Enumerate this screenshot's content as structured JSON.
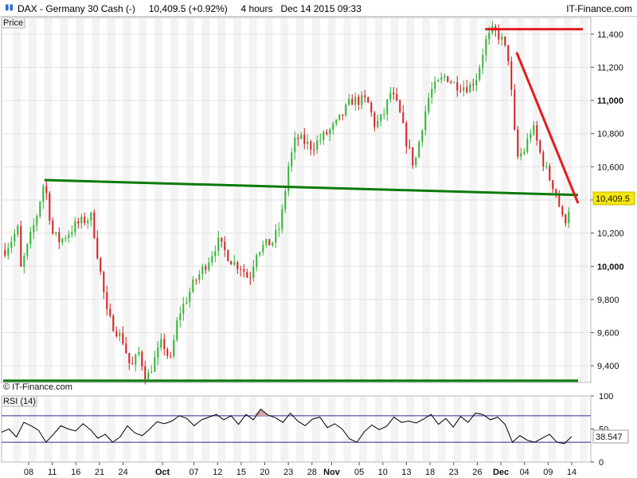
{
  "header": {
    "title": "DAX - Germany 30 Cash (-)     10,409.5 (+0.92%)     4 hours   Dec 14 2015 09:33",
    "brand": "IT-Finance.com"
  },
  "colors": {
    "up": "#33b233",
    "down": "#d22020",
    "support": "#0b7a0b",
    "resistance": "#e41b1b",
    "last_price_bg": "#f5e60e",
    "rsi_line": "#000000",
    "rsi_band": "#2b2b8c",
    "rsi_overbought_fill": "#d7a8a8"
  },
  "chart_data": [
    {
      "type": "candlestick",
      "panel_label": "Price",
      "watermark": "© IT-Finance.com",
      "ylim": [
        9300,
        11500
      ],
      "yticks": [
        9400,
        9600,
        9800,
        10000,
        10200,
        10400,
        10600,
        10800,
        11000,
        11200,
        11400
      ],
      "ytick_labels": [
        "9,400",
        "9,600",
        "9,800",
        "10,000",
        "10,200",
        "10,400",
        "10,600",
        "10,800",
        "11,000",
        "11,200",
        "11,400"
      ],
      "last_price": "10,409.5",
      "last_value": 10409.5,
      "x_dates": [
        "Sep 08",
        "Sep 11",
        "Sep 16",
        "Sep 21",
        "Sep 24",
        "Oct",
        "Oct 07",
        "Oct 12",
        "Oct 15",
        "Oct 20",
        "Oct 23",
        "Oct 28",
        "Nov",
        "Nov 05",
        "Nov 10",
        "Nov 13",
        "Nov 18",
        "Nov 23",
        "Nov 26",
        "Dec",
        "Dec 04",
        "Dec 09",
        "Dec 14"
      ],
      "x_labels": [
        "08",
        "11",
        "16",
        "21",
        "24",
        "Oct",
        "07",
        "12",
        "15",
        "20",
        "23",
        "28",
        "Nov",
        "05",
        "10",
        "13",
        "18",
        "23",
        "26",
        "Dec",
        "04",
        "09",
        "14"
      ],
      "x_label_bold": [
        false,
        false,
        false,
        false,
        false,
        true,
        false,
        false,
        false,
        false,
        false,
        false,
        true,
        false,
        false,
        false,
        false,
        false,
        false,
        true,
        false,
        false,
        false
      ],
      "path_points": [
        [
          "Sep 03",
          10100
        ],
        [
          "Sep 05",
          10250
        ],
        [
          "Sep 07",
          9980
        ],
        [
          "Sep 09",
          10300
        ],
        [
          "Sep 10",
          10520
        ],
        [
          "Sep 11",
          10200
        ],
        [
          "Sep 14",
          10150
        ],
        [
          "Sep 16",
          10250
        ],
        [
          "Sep 18",
          10300
        ],
        [
          "Sep 21",
          10000
        ],
        [
          "Sep 22",
          9700
        ],
        [
          "Sep 24",
          9550
        ],
        [
          "Sep 25",
          9380
        ],
        [
          "Sep 28",
          9480
        ],
        [
          "Sep 29",
          9320
        ],
        [
          "Oct 01",
          9550
        ],
        [
          "Oct 02",
          9420
        ],
        [
          "Oct 05",
          9700
        ],
        [
          "Oct 07",
          9900
        ],
        [
          "Oct 09",
          10050
        ],
        [
          "Oct 12",
          10150
        ],
        [
          "Oct 14",
          10020
        ],
        [
          "Oct 15",
          10000
        ],
        [
          "Oct 16",
          9920
        ],
        [
          "Oct 19",
          10100
        ],
        [
          "Oct 21",
          10150
        ],
        [
          "Oct 22",
          10250
        ],
        [
          "Oct 23",
          10600
        ],
        [
          "Oct 26",
          10780
        ],
        [
          "Oct 28",
          10720
        ],
        [
          "Nov 02",
          10850
        ],
        [
          "Nov 04",
          11000
        ],
        [
          "Nov 06",
          11000
        ],
        [
          "Nov 09",
          10850
        ],
        [
          "Nov 10",
          10900
        ],
        [
          "Nov 11",
          11050
        ],
        [
          "Nov 12",
          10950
        ],
        [
          "Nov 13",
          10750
        ],
        [
          "Nov 16",
          10600
        ],
        [
          "Nov 17",
          10850
        ],
        [
          "Nov 18",
          11050
        ],
        [
          "Nov 20",
          11150
        ],
        [
          "Nov 23",
          11100
        ],
        [
          "Nov 25",
          11080
        ],
        [
          "Nov 26",
          11150
        ],
        [
          "Nov 27",
          11350
        ],
        [
          "Nov 30",
          11420
        ],
        [
          "Dec 01",
          11380
        ],
        [
          "Dec 02",
          11250
        ],
        [
          "Dec 03",
          10650
        ],
        [
          "Dec 04",
          10700
        ],
        [
          "Dec 07",
          10850
        ],
        [
          "Dec 08",
          10680
        ],
        [
          "Dec 09",
          10550
        ],
        [
          "Dec 10",
          10450
        ],
        [
          "Dec 11",
          10250
        ],
        [
          "Dec 14",
          10409.5
        ]
      ],
      "annotations": [
        {
          "type": "trendline",
          "color": "support",
          "from": [
            "Sep 10",
            10520
          ],
          "to": [
            "Dec 14",
            10430
          ]
        },
        {
          "type": "horizontal",
          "color": "support",
          "value": 9310
        },
        {
          "type": "horizontal",
          "color": "resistance",
          "value": 11430,
          "from": "Nov 27",
          "to": "Dec 14"
        },
        {
          "type": "trendline",
          "color": "resistance",
          "from": [
            "Dec 03",
            11290
          ],
          "to": [
            "Dec 14",
            10380
          ]
        }
      ]
    },
    {
      "type": "line",
      "panel_label": "RSI (14)",
      "ylim": [
        0,
        100
      ],
      "yticks": [
        0,
        50,
        100
      ],
      "ytick_labels": [
        "0",
        "50",
        "100"
      ],
      "bands": [
        70,
        30
      ],
      "last_value": 38.547,
      "last_value_label": "38.547",
      "series": [
        {
          "values": [
            45,
            50,
            38,
            60,
            55,
            48,
            30,
            42,
            55,
            50,
            47,
            58,
            49,
            36,
            42,
            30,
            38,
            55,
            44,
            40,
            50,
            61,
            58,
            62,
            70,
            66,
            55,
            64,
            68,
            72,
            64,
            70,
            57,
            72,
            64,
            80,
            71,
            67,
            60,
            74,
            62,
            55,
            65,
            68,
            52,
            58,
            50,
            35,
            30,
            46,
            56,
            49,
            54,
            68,
            60,
            62,
            59,
            65,
            72,
            57,
            66,
            53,
            69,
            60,
            74,
            72,
            64,
            68,
            57,
            30,
            40,
            33,
            30,
            36,
            42,
            30,
            28,
            38.547
          ]
        }
      ]
    }
  ]
}
